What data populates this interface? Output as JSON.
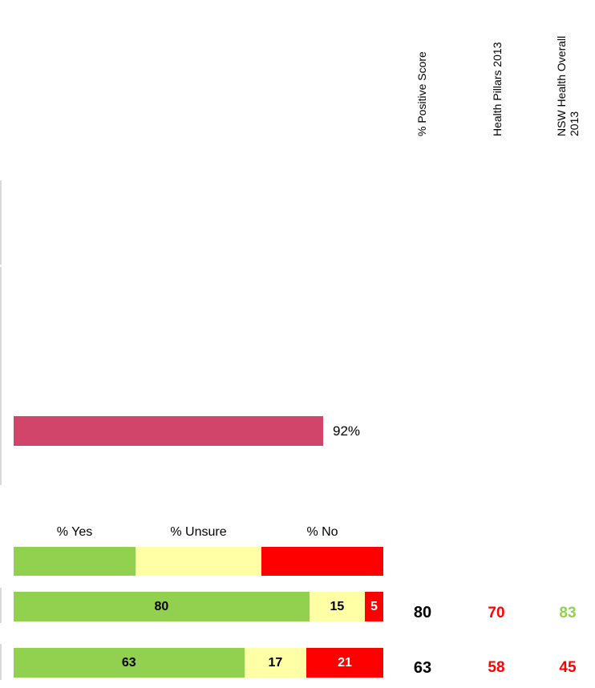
{
  "column_headers": {
    "positive_score": "% Positive Score",
    "health_pillars": "Health Pillars 2013",
    "nsw_overall_line1": "NSW Health Overall",
    "nsw_overall_line2": "2013"
  },
  "colors": {
    "highlight_bar": "#d2456b",
    "yes": "#92d050",
    "unsure": "#ffffa5",
    "no": "#ff0000",
    "comparison_worse": "#ff0000",
    "comparison_better": "#92d050"
  },
  "chart_data": [
    {
      "type": "bar",
      "values": [
        92
      ],
      "labels": [
        "92%"
      ],
      "xlim": [
        0,
        100
      ]
    },
    {
      "type": "bar",
      "stacked": true,
      "legend": [
        "% Yes",
        "% Unsure",
        "% No"
      ],
      "series": [
        {
          "name": "% Yes",
          "values": [
            80,
            63
          ]
        },
        {
          "name": "% Unsure",
          "values": [
            15,
            17
          ]
        },
        {
          "name": "% No",
          "values": [
            5,
            21
          ]
        }
      ],
      "rows": [
        {
          "yes": "80",
          "unsure": "15",
          "no": "5",
          "positive": "80",
          "pillars": "70",
          "nsw": "83",
          "pillars_status": "worse",
          "nsw_status": "better"
        },
        {
          "yes": "63",
          "unsure": "17",
          "no": "21",
          "positive": "63",
          "pillars": "58",
          "nsw": "45",
          "pillars_status": "worse",
          "nsw_status": "worse"
        }
      ]
    }
  ]
}
